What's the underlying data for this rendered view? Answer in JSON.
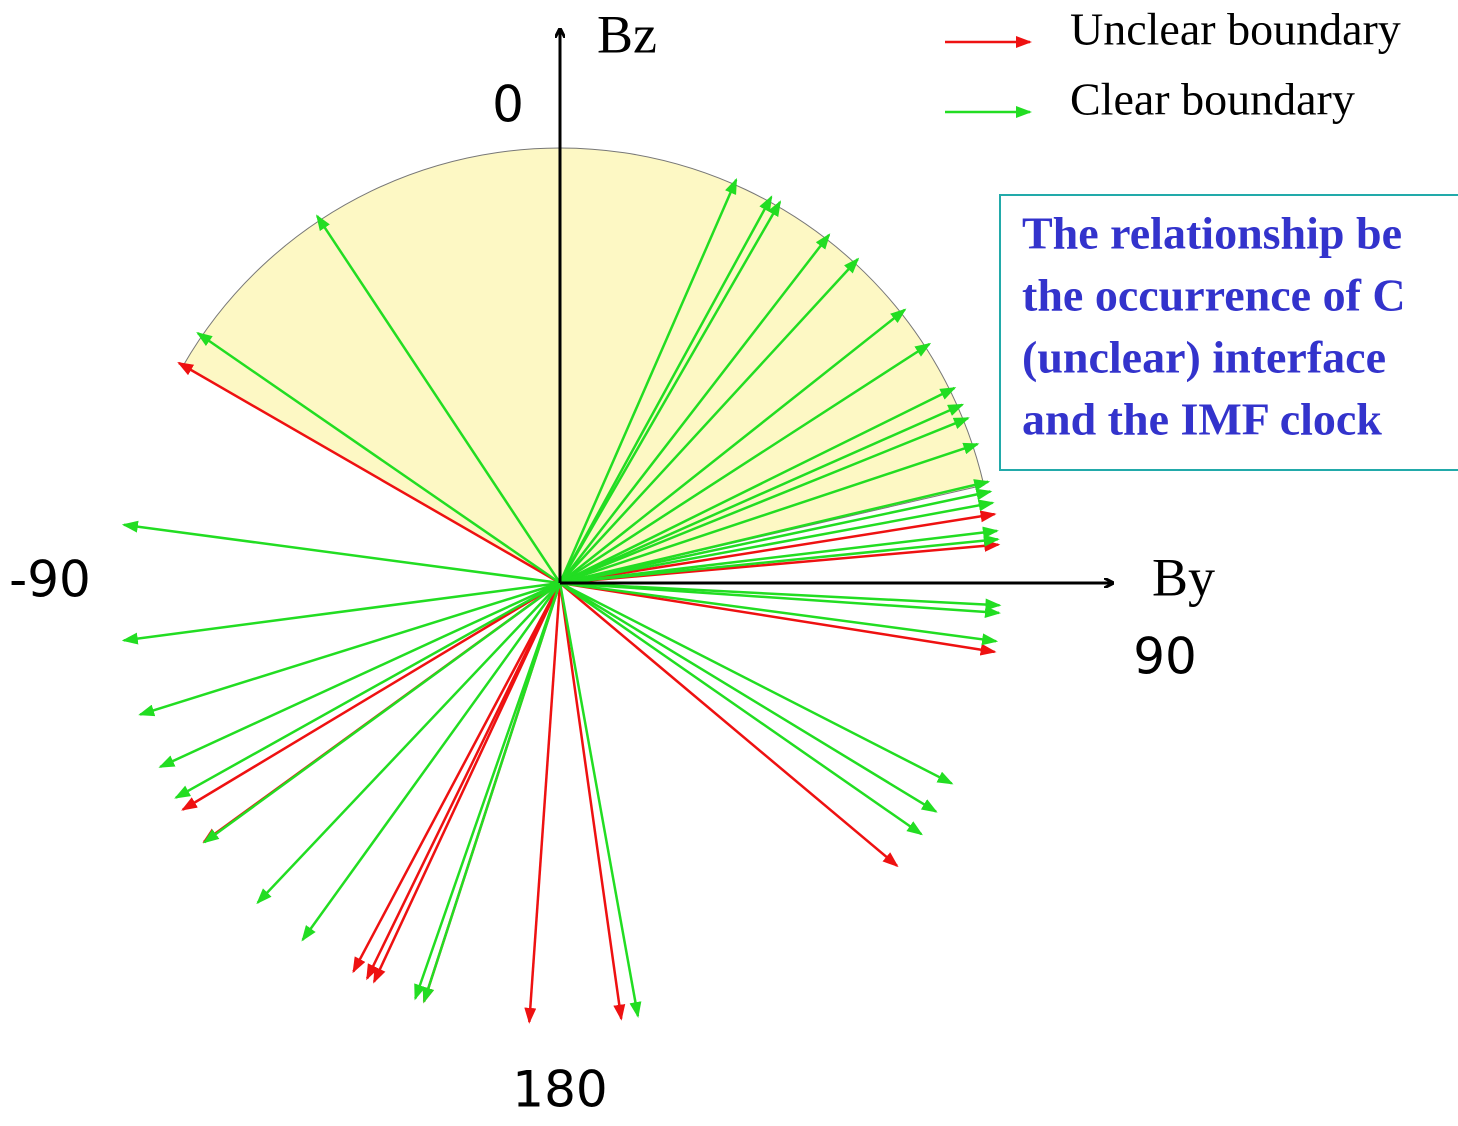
{
  "chart_data": {
    "type": "clock-arrows",
    "x_label": "By",
    "y_label": "Bz",
    "ticks": [
      0,
      90,
      180,
      -90
    ],
    "sector": [
      -60,
      77
    ],
    "sector_color": "#fdf8c4",
    "series": [
      {
        "name": "Unclear boundary",
        "color": "#ee1111",
        "values": [
          -60,
          81,
          85,
          99,
          130,
          172,
          -176,
          -162,
          -155,
          -154,
          -152,
          -126,
          -121
        ]
      },
      {
        "name": "Clear boundary",
        "color": "#22dd22",
        "values": [
          -33.5,
          -55.4,
          23.6,
          28.7,
          30,
          37.7,
          42.6,
          51.6,
          57.1,
          63.7,
          66.1,
          68,
          71.6,
          76.7,
          78,
          79.5,
          83.2,
          84.3,
          92.9,
          93.9,
          97.6,
          117.1,
          121.3,
          124.8,
          169.8,
          -160.8,
          -162,
          -144.2,
          -136.6,
          -126.1,
          -119.2,
          -114.7,
          -107.4,
          -97.5,
          -82.4
        ]
      }
    ],
    "note": [
      "The relationship be",
      "the occurrence of C",
      "(unclear) interface",
      "and the IMF clock"
    ]
  }
}
